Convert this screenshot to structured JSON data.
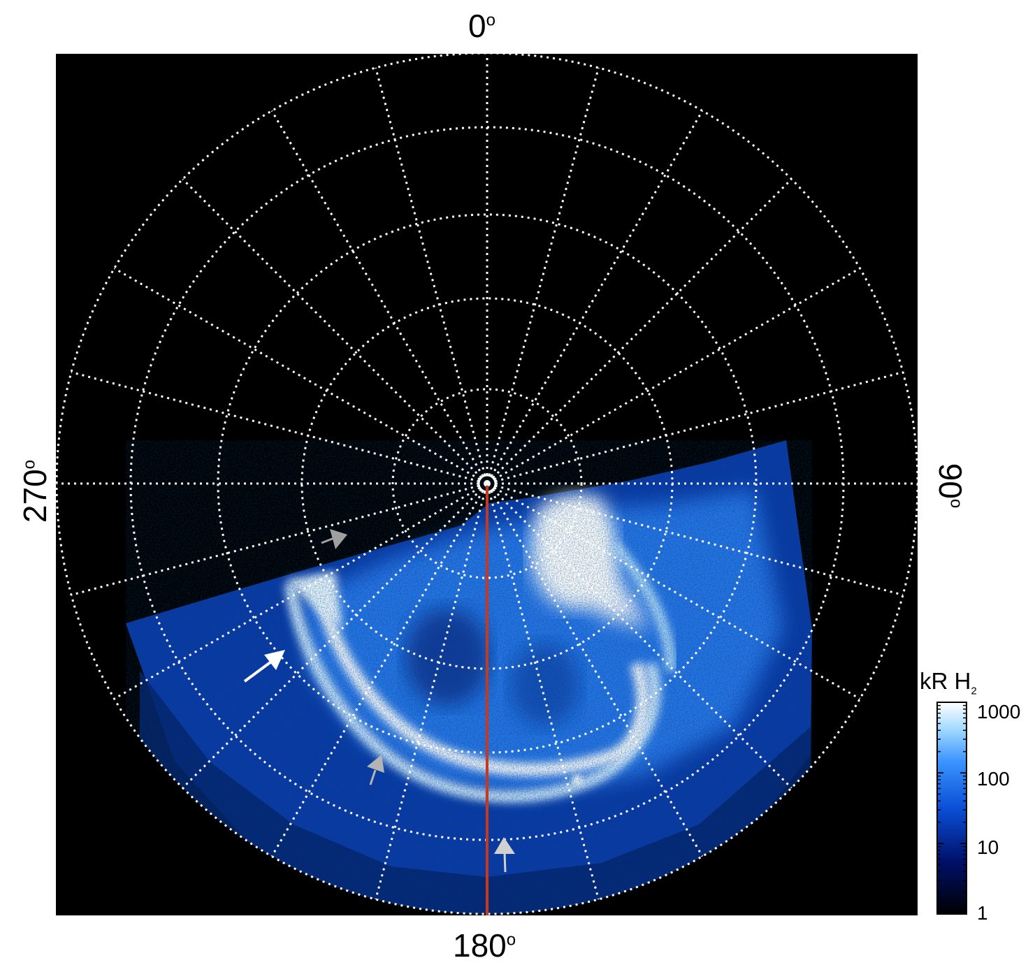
{
  "figure": {
    "direction_labels": {
      "top": "0",
      "right": "90",
      "bottom": "180",
      "left": "270"
    },
    "degree_symbol": "o",
    "background_color": "#000000",
    "aurora_colors": [
      "#000010",
      "#001a66",
      "#0a4fd6",
      "#2f8cff",
      "#8fd0ff",
      "#ffffff"
    ],
    "grid_color": "#ffffff",
    "meridian_line_color": "#c8391c",
    "grid": {
      "rings": 5,
      "meridians": 24
    }
  },
  "colorbar": {
    "title_main": "kR H",
    "title_sub": "2",
    "scale": "log",
    "ticks": [
      "1000",
      "100",
      "10",
      "1"
    ]
  },
  "annotations": {
    "arrows": [
      {
        "name": "grey-arrow-upper-left",
        "color": "#a0a0a0"
      },
      {
        "name": "white-arrow-left",
        "color": "#ffffff"
      },
      {
        "name": "grey-arrow-lower-left",
        "color": "#b4b4b4"
      },
      {
        "name": "grey-arrow-bottom",
        "color": "#d0d0d0"
      }
    ]
  }
}
